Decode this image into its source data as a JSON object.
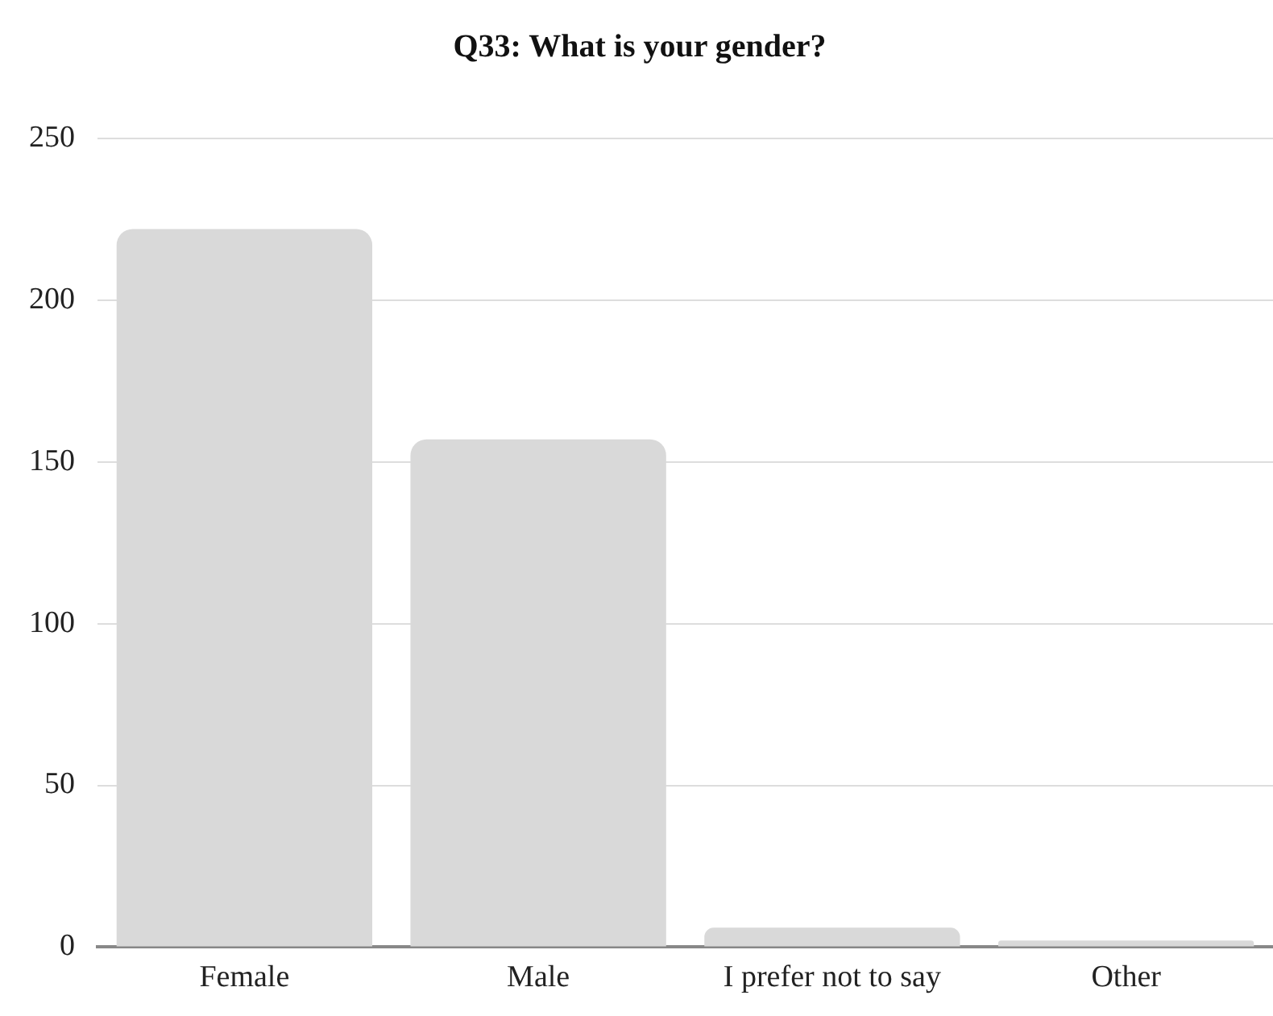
{
  "chart_data": {
    "type": "bar",
    "title": "Q33: What is your gender?",
    "categories": [
      "Female",
      "Male",
      "I prefer not to say",
      "Other"
    ],
    "values": [
      222,
      157,
      6,
      2
    ],
    "color": "#d9d9d9",
    "ylim": [
      0,
      250
    ],
    "yticks": [
      0,
      50,
      100,
      150,
      200,
      250
    ],
    "grid": "y",
    "legend": false
  }
}
